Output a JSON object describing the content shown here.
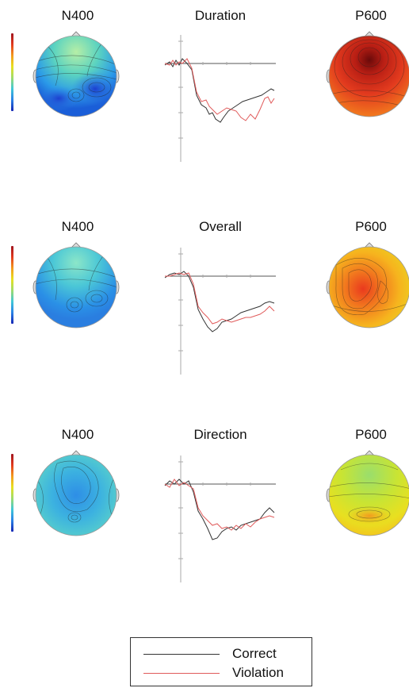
{
  "rows": [
    {
      "left_title": "N400",
      "center_title": "Duration",
      "right_title": "P600"
    },
    {
      "left_title": "N400",
      "center_title": "Overall",
      "right_title": "P600"
    },
    {
      "left_title": "N400",
      "center_title": "Direction",
      "right_title": "P600"
    }
  ],
  "legend": {
    "items": [
      {
        "label": "Correct",
        "color": "#333333"
      },
      {
        "label": "Violation",
        "color": "#e05a5a"
      }
    ]
  }
}
